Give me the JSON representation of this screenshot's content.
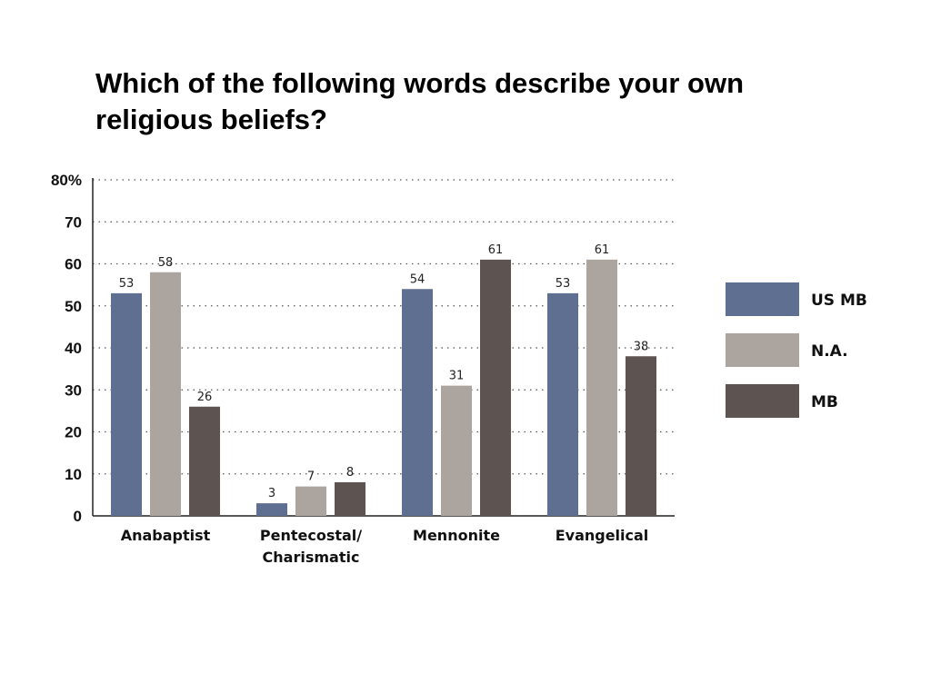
{
  "chart_data": {
    "type": "bar",
    "title_lines": [
      "Which of the following words describe your own",
      "religious beliefs?"
    ],
    "categories": [
      [
        "Anabaptist"
      ],
      [
        "Pentecostal/",
        "Charismatic"
      ],
      [
        "Mennonite"
      ],
      [
        "Evangelical"
      ]
    ],
    "series": [
      {
        "name": "US MB",
        "color": "#5f6f91",
        "values": [
          53,
          3,
          54,
          53
        ]
      },
      {
        "name": "N.A.",
        "color": "#aca49f",
        "values": [
          58,
          7,
          31,
          61
        ]
      },
      {
        "name": "MB",
        "color": "#5d5350",
        "values": [
          26,
          8,
          61,
          38
        ]
      }
    ],
    "yticks": [
      "0",
      "10",
      "20",
      "30",
      "40",
      "50",
      "60",
      "70",
      "80%"
    ],
    "ylim": [
      0,
      80
    ],
    "grid": true,
    "legend_position": "right"
  }
}
